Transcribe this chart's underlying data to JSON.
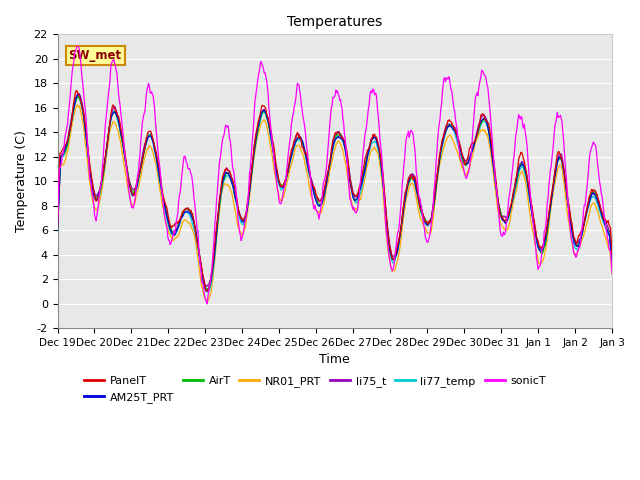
{
  "title": "Temperatures",
  "xlabel": "Time",
  "ylabel": "Temperature (C)",
  "ylim": [
    -2,
    22
  ],
  "yticks": [
    -2,
    0,
    2,
    4,
    6,
    8,
    10,
    12,
    14,
    16,
    18,
    20,
    22
  ],
  "series_colors": {
    "PanelT": "#dd0000",
    "AM25T_PRT": "#0000dd",
    "AirT": "#00bb00",
    "NR01_PRT": "#ffaa00",
    "li75_t": "#9900bb",
    "li77_temp": "#00cccc",
    "sonicT": "#ff00ff"
  },
  "legend_label": "SW_met",
  "legend_label_color": "#8B0000",
  "legend_label_bg": "#ffff99",
  "legend_label_border": "#cc8800",
  "plot_bg": "#e8e8e8",
  "fig_bg": "#ffffff",
  "n_points": 720,
  "seed": 42
}
